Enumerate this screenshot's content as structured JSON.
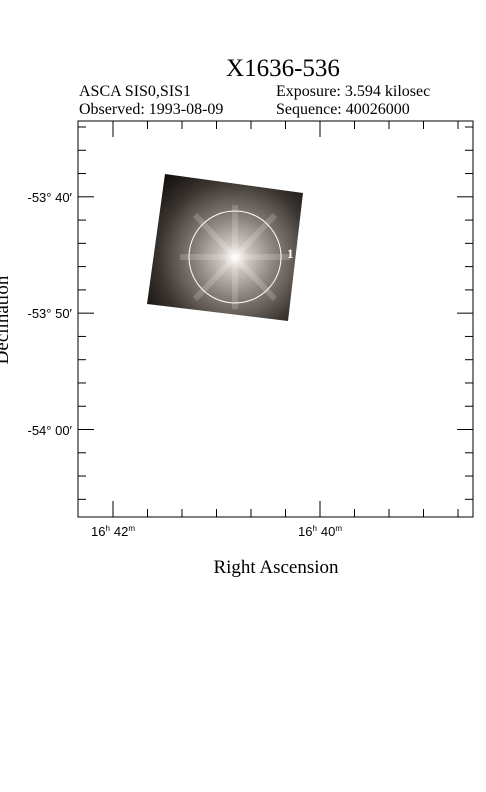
{
  "header": {
    "title": "X1636-536",
    "instrument": "ASCA SIS0,SIS1",
    "exposure": "Exposure: 3.594 kilosec",
    "observed": "Observed: 1993-08-09",
    "sequence": "Sequence: 40026000"
  },
  "plot": {
    "x_axis_label": "Right Ascension",
    "y_axis_label": "Declination",
    "y_tick_labels": [
      "-53° 40′",
      "-53° 50′",
      "-54° 00′"
    ],
    "x_tick_labels": [
      {
        "hours": "16",
        "h": "h",
        "minutes": "42",
        "m": "m"
      },
      {
        "hours": "16",
        "h": "h",
        "minutes": "40",
        "m": "m"
      }
    ],
    "source_label": "1"
  }
}
